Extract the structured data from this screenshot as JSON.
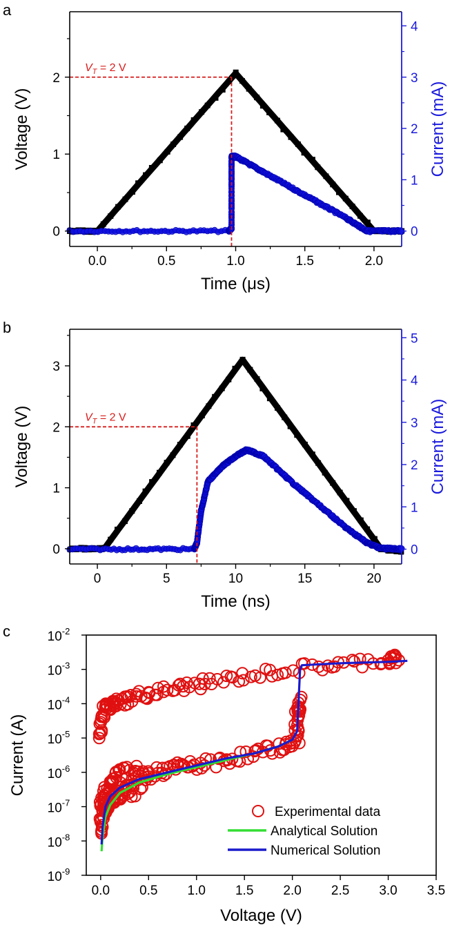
{
  "chart_data": [
    {
      "panel": "a",
      "type": "line",
      "xlabel": "Time (μs)",
      "ylabel_left": "Voltage (V)",
      "ylabel_right": "Current (mA)",
      "xlim": [
        -0.2,
        2.2
      ],
      "ylim_left": [
        -0.2,
        2.85
      ],
      "ylim_right": [
        -0.3,
        4.275
      ],
      "xticks": [
        0.0,
        0.5,
        1.0,
        1.5,
        2.0
      ],
      "xtick_labels": [
        "0.0",
        "0.5",
        "1.0",
        "1.5",
        "2.0"
      ],
      "yticks_left": [
        0,
        1,
        2
      ],
      "ytick_labels_left": [
        "0",
        "1",
        "2"
      ],
      "yticks_right": [
        0,
        1,
        2,
        3,
        4
      ],
      "ytick_labels_right": [
        "0",
        "1",
        "2",
        "3",
        "4"
      ],
      "annotation": {
        "label": "V",
        "subscript": "T",
        "suffix": " = 2 V",
        "x": 0.97,
        "y": 2.0
      },
      "series": [
        {
          "name": "Voltage",
          "axis": "left",
          "color": "#000000",
          "x": [
            -0.2,
            0.0,
            1.0,
            2.0,
            2.2
          ],
          "y": [
            0.0,
            0.0,
            2.05,
            0.0,
            0.0
          ]
        },
        {
          "name": "Current",
          "axis": "right",
          "color": "#1010e0",
          "x": [
            -0.2,
            0.95,
            0.97,
            0.97,
            1.0,
            1.2,
            1.5,
            1.8,
            1.95,
            2.2
          ],
          "y": [
            0.0,
            0.0,
            0.05,
            1.45,
            1.45,
            1.15,
            0.7,
            0.25,
            0.0,
            0.0
          ]
        }
      ]
    },
    {
      "panel": "b",
      "type": "line",
      "xlabel": "Time (ns)",
      "ylabel_left": "Voltage (V)",
      "ylabel_right": "Current (mA)",
      "xlim": [
        -2,
        22
      ],
      "ylim_left": [
        -0.25,
        3.6
      ],
      "ylim_right": [
        -0.35,
        5.2
      ],
      "xticks": [
        0,
        5,
        10,
        15,
        20
      ],
      "xtick_labels": [
        "0",
        "5",
        "10",
        "15",
        "20"
      ],
      "yticks_left": [
        0,
        1,
        2,
        3
      ],
      "ytick_labels_left": [
        "0",
        "1",
        "2",
        "3"
      ],
      "yticks_right": [
        0,
        1,
        2,
        3,
        4,
        5
      ],
      "ytick_labels_right": [
        "0",
        "1",
        "2",
        "3",
        "4",
        "5"
      ],
      "annotation": {
        "label": "V",
        "subscript": "T",
        "suffix": " = 2 V",
        "x": 7.2,
        "y": 2.0
      },
      "series": [
        {
          "name": "Voltage",
          "axis": "left",
          "color": "#000000",
          "x": [
            -2,
            0.5,
            10.5,
            20.5,
            22
          ],
          "y": [
            0.0,
            0.0,
            3.1,
            0.0,
            -0.05
          ]
        },
        {
          "name": "Current",
          "axis": "right",
          "color": "#1010e0",
          "x": [
            -2,
            7.0,
            7.2,
            7.5,
            8.0,
            9.0,
            10.0,
            10.8,
            12.0,
            14.0,
            16.0,
            18.0,
            19.5,
            20.5,
            22
          ],
          "y": [
            0.0,
            0.0,
            0.15,
            0.9,
            1.6,
            1.95,
            2.2,
            2.35,
            2.2,
            1.6,
            1.05,
            0.5,
            0.15,
            0.02,
            0.0
          ]
        }
      ]
    },
    {
      "panel": "c",
      "type": "scatter",
      "xlabel": "Voltage (V)",
      "ylabel": "Current (A)",
      "yscale": "log",
      "xlim": [
        -0.15,
        3.5
      ],
      "ylim_exp": [
        -9,
        -2
      ],
      "xticks": [
        0.0,
        0.5,
        1.0,
        1.5,
        2.0,
        2.5,
        3.0,
        3.5
      ],
      "xtick_labels": [
        "0.0",
        "0.5",
        "1.0",
        "1.5",
        "2.0",
        "2.5",
        "3.0",
        "3.5"
      ],
      "yticks_exp": [
        -9,
        -8,
        -7,
        -6,
        -5,
        -4,
        -3,
        -2
      ],
      "ytick_base": "10",
      "ytick_exponents": [
        "-9",
        "-8",
        "-7",
        "-6",
        "-5",
        "-4",
        "-3",
        "-2"
      ],
      "legend": [
        "Experimental data",
        "Analytical Solution",
        "Numerical Solution"
      ],
      "legend_position": "bottom-right",
      "series": [
        {
          "name": "Experimental data",
          "color": "#e01010",
          "marker": "open-circle",
          "upper_branch": {
            "x": [
              0.0,
              0.03,
              0.08,
              0.15,
              0.3,
              0.5,
              0.8,
              1.1,
              1.5,
              2.0,
              2.5,
              3.0,
              3.1
            ],
            "log10_y": [
              -5.0,
              -4.25,
              -4.1,
              -4.0,
              -3.85,
              -3.7,
              -3.55,
              -3.4,
              -3.2,
              -3.0,
              -2.85,
              -2.72,
              -2.7
            ]
          },
          "lower_branch": {
            "x": [
              0.0,
              0.03,
              0.08,
              0.15,
              0.25,
              0.4,
              0.6,
              0.8,
              1.0,
              1.3,
              1.6,
              1.9,
              2.05,
              2.05,
              2.07
            ],
            "log10_y": [
              -7.5,
              -6.9,
              -6.6,
              -6.4,
              -6.3,
              -6.25,
              -6.0,
              -5.85,
              -5.8,
              -5.65,
              -5.45,
              -5.25,
              -5.1,
              -4.3,
              -3.9
            ]
          }
        },
        {
          "name": "Analytical Solution",
          "color": "#33dd33",
          "x": [
            0.01,
            0.02,
            0.05,
            0.1,
            0.2,
            0.4,
            0.7,
            1.0,
            1.3,
            1.6,
            1.85,
            2.0
          ],
          "log10_y": [
            -8.3,
            -7.9,
            -7.3,
            -6.95,
            -6.6,
            -6.3,
            -6.05,
            -5.85,
            -5.65,
            -5.45,
            -5.25,
            -5.05
          ]
        },
        {
          "name": "Numerical Solution",
          "color": "#1a1acc",
          "x": [
            0.01,
            0.02,
            0.05,
            0.1,
            0.2,
            0.4,
            0.7,
            1.0,
            1.3,
            1.6,
            1.85,
            2.0,
            2.05,
            2.08,
            2.1,
            2.5,
            3.0,
            3.2
          ],
          "log10_y": [
            -8.1,
            -7.6,
            -7.0,
            -6.7,
            -6.45,
            -6.2,
            -6.0,
            -5.8,
            -5.6,
            -5.45,
            -5.25,
            -5.05,
            -4.8,
            -3.0,
            -2.88,
            -2.82,
            -2.78,
            -2.75
          ]
        }
      ]
    }
  ]
}
